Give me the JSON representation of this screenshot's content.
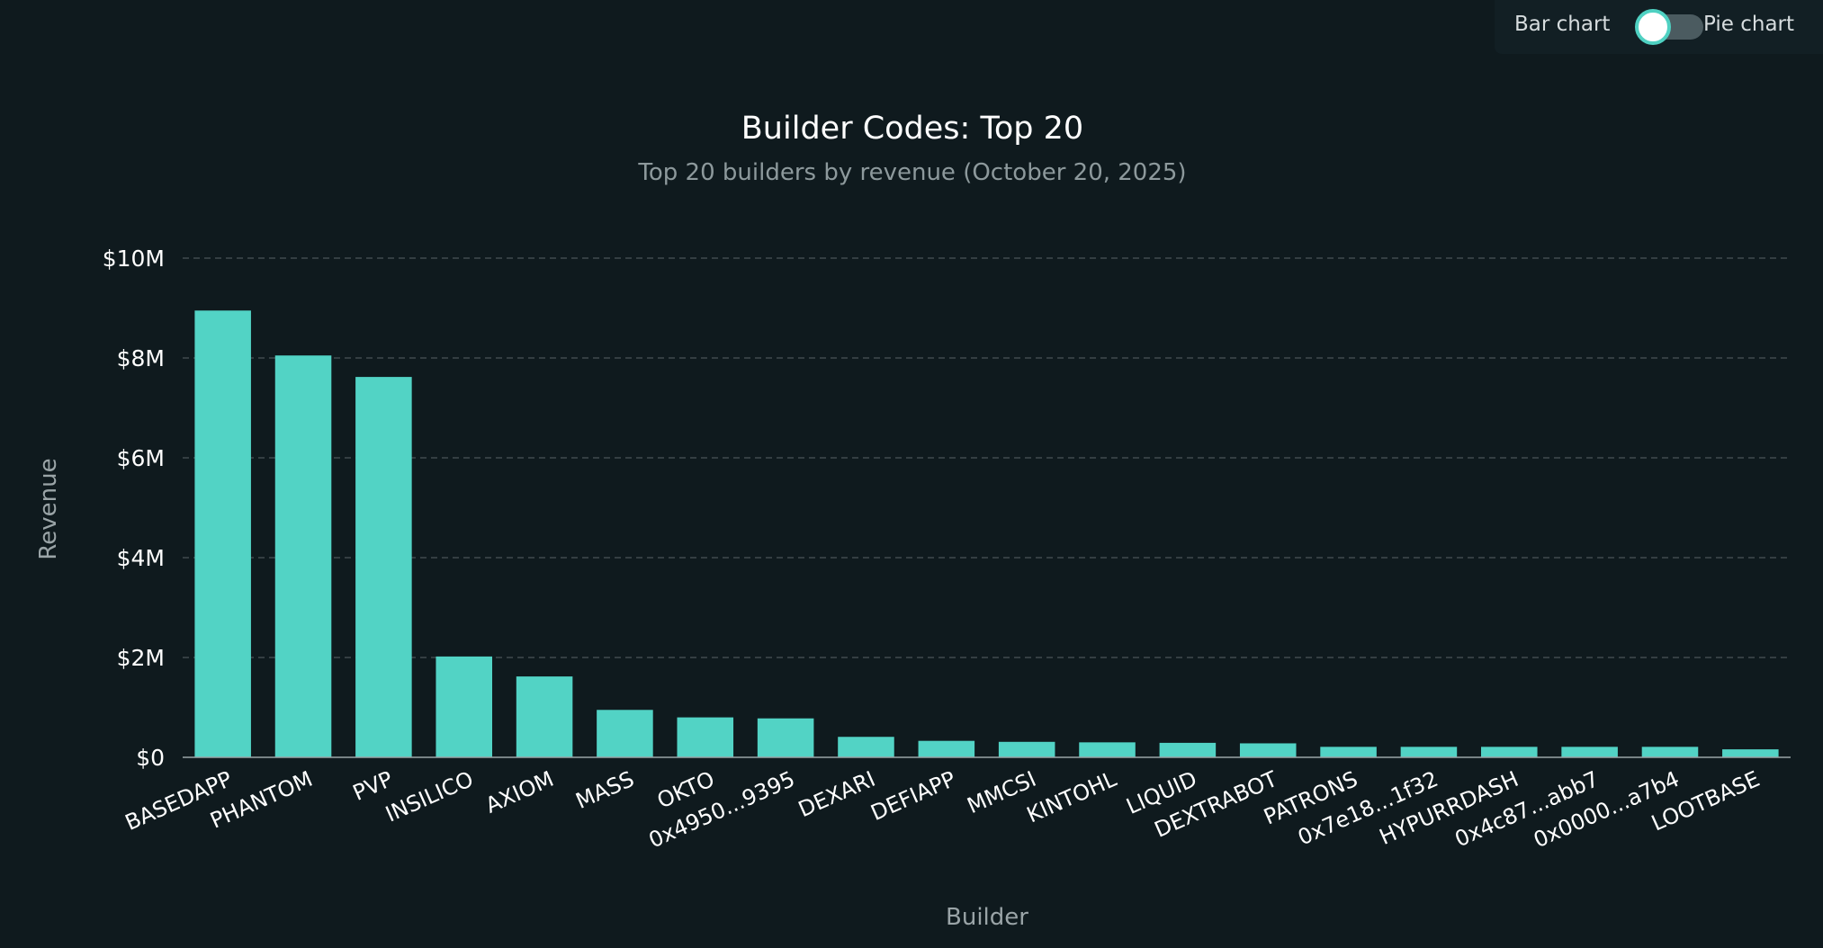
{
  "toggle": {
    "left_label": "Bar chart",
    "right_label": "Pie chart",
    "selected": "Bar chart"
  },
  "colors": {
    "background": "#0f1a1e",
    "bar": "#52d3c5",
    "grid": "#4a5559",
    "subtitle": "#8d999c",
    "axis_label": "#9aa4a7"
  },
  "chart_data": {
    "type": "bar",
    "title": "Builder Codes: Top 20",
    "subtitle": "Top 20 builders by revenue (October 20, 2025)",
    "xlabel": "Builder",
    "ylabel": "Revenue",
    "ylim": [
      0,
      10000000
    ],
    "yticks": [
      0,
      2000000,
      4000000,
      6000000,
      8000000,
      10000000
    ],
    "ytick_labels": [
      "$0",
      "$2M",
      "$4M",
      "$6M",
      "$8M",
      "$10M"
    ],
    "grid": true,
    "categories": [
      "BASEDAPP",
      "PHANTOM",
      "PVP",
      "INSILICO",
      "AXIOM",
      "MASS",
      "OKTO",
      "0x4950...9395",
      "DEXARI",
      "DEFIAPP",
      "MMCSI",
      "KINTOHL",
      "LIQUID",
      "DEXTRABOT",
      "PATRONS",
      "0x7e18...1f32",
      "HYPURRDASH",
      "0x4c87...abb7",
      "0x0000...a7b4",
      "LOOTBASE"
    ],
    "values": [
      8950000,
      8050000,
      7620000,
      2020000,
      1620000,
      950000,
      800000,
      780000,
      410000,
      330000,
      310000,
      300000,
      290000,
      280000,
      210000,
      210000,
      210000,
      210000,
      210000,
      160000
    ]
  }
}
